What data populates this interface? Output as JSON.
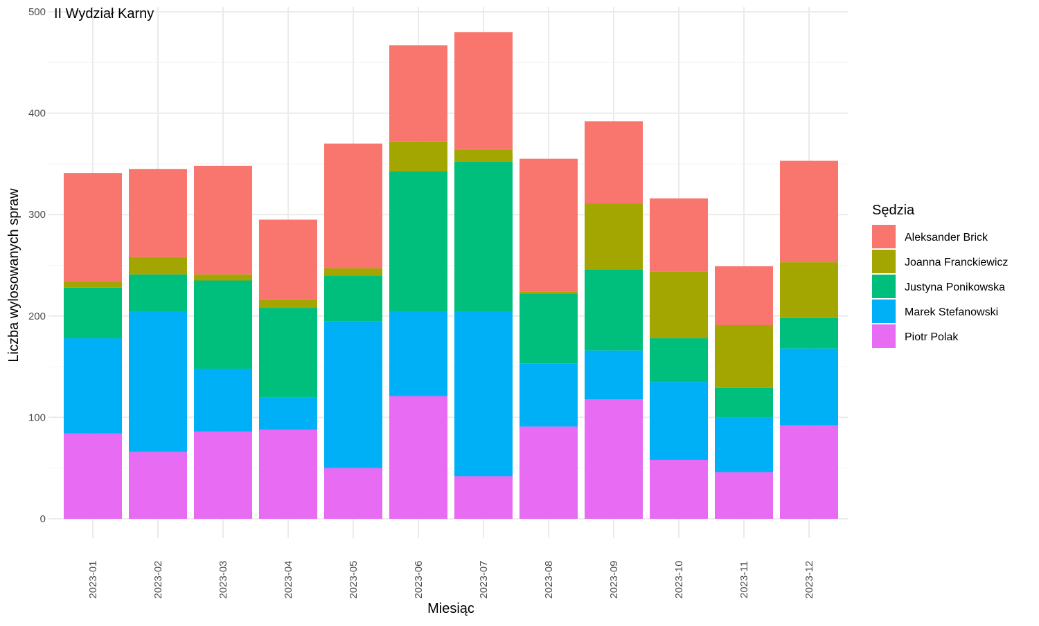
{
  "chart_data": {
    "type": "bar",
    "stacked": true,
    "title": "II Wydział Karny",
    "xlabel": "Miesiąc",
    "ylabel": "Liczba wylosowanych spraw",
    "ylim": [
      0,
      500
    ],
    "yticks": [
      0,
      100,
      200,
      300,
      400,
      500
    ],
    "grid": true,
    "legend_title": "Sędzia",
    "legend_position": "right",
    "categories": [
      "2023-01",
      "2023-02",
      "2023-03",
      "2023-04",
      "2023-05",
      "2023-06",
      "2023-07",
      "2023-08",
      "2023-09",
      "2023-10",
      "2023-11",
      "2023-12"
    ],
    "series": [
      {
        "name": "Aleksander Brick",
        "color": "#F8766D",
        "values": [
          107,
          87,
          107,
          79,
          123,
          95,
          116,
          131,
          81,
          72,
          58,
          100
        ]
      },
      {
        "name": "Joanna Franckiewicz",
        "color": "#A3A500",
        "values": [
          6,
          17,
          6,
          8,
          7,
          29,
          12,
          2,
          65,
          66,
          62,
          55
        ]
      },
      {
        "name": "Justyna Ponikowska",
        "color": "#00BF7D",
        "values": [
          50,
          37,
          87,
          88,
          45,
          139,
          148,
          69,
          80,
          43,
          29,
          30
        ]
      },
      {
        "name": "Marek Stefanowski",
        "color": "#00B0F6",
        "values": [
          94,
          138,
          62,
          32,
          145,
          83,
          162,
          62,
          48,
          77,
          54,
          76
        ]
      },
      {
        "name": "Piotr Polak",
        "color": "#E76BF3",
        "values": [
          84,
          66,
          86,
          88,
          50,
          121,
          42,
          91,
          118,
          58,
          46,
          92
        ]
      }
    ]
  }
}
